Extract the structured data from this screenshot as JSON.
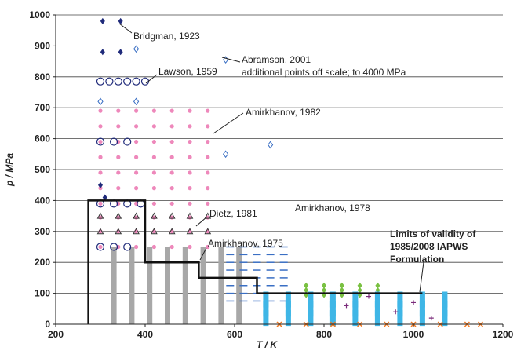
{
  "chart_data": {
    "type": "scatter",
    "xlabel": "T / K",
    "ylabel": "p / MPa",
    "xlim": [
      200,
      1200
    ],
    "ylim": [
      0,
      1000
    ],
    "xticks": [
      200,
      400,
      600,
      800,
      1000,
      1200
    ],
    "yticks": [
      0,
      100,
      200,
      300,
      400,
      500,
      600,
      700,
      800,
      900,
      1000
    ],
    "grid": true,
    "annotations": [
      "Bridgman, 1923",
      "Abramson, 2001",
      "additional points off scale; to 4000 MPa",
      "Lawson, 1959",
      "Amirkhanov, 1982",
      "Dietz, 1981",
      "Amirkhanov, 1975",
      "Amirkhanov, 1978",
      "Limits of validity of",
      "1985/2008 IAPWS",
      "Formulation"
    ],
    "series": [
      {
        "color": "#ee88bb",
        "marker": "dot",
        "x": [
          300,
          340,
          380,
          420,
          460,
          500,
          540,
          300,
          340,
          380,
          420,
          460,
          500,
          540,
          300,
          340,
          380,
          420,
          460,
          500,
          540,
          300,
          340,
          380,
          420,
          460,
          500,
          540,
          300,
          340,
          380,
          420,
          460,
          500,
          540,
          300,
          340,
          380,
          420,
          460,
          500,
          540,
          300,
          340,
          380,
          420,
          460,
          500,
          540,
          300,
          340,
          380,
          420,
          460,
          500,
          540,
          300,
          340,
          380,
          420,
          460,
          500,
          540,
          300,
          340,
          380,
          420,
          460,
          500,
          540
        ],
        "values": [
          690,
          690,
          690,
          690,
          690,
          690,
          690,
          640,
          640,
          640,
          640,
          640,
          640,
          640,
          590,
          590,
          590,
          590,
          590,
          590,
          590,
          540,
          540,
          540,
          540,
          540,
          540,
          540,
          490,
          490,
          490,
          490,
          490,
          490,
          490,
          440,
          440,
          440,
          440,
          440,
          440,
          440,
          390,
          390,
          390,
          390,
          390,
          390,
          390,
          345,
          345,
          345,
          345,
          345,
          345,
          345,
          300,
          300,
          300,
          300,
          300,
          300,
          300,
          250,
          250,
          250,
          250,
          250,
          250,
          250
        ]
      },
      {
        "color": "#a8a8a8",
        "marker": "vbar",
        "x": [
          330,
          370,
          410,
          450,
          490,
          530,
          570,
          610,
          330,
          370,
          410,
          450,
          490,
          530,
          570,
          610,
          330,
          370,
          410,
          450,
          490,
          530,
          570,
          610,
          330,
          370,
          410,
          450,
          490,
          530,
          570,
          610,
          330,
          370,
          410,
          450,
          490,
          530,
          570,
          610
        ],
        "values": [
          25,
          25,
          25,
          25,
          25,
          25,
          25,
          25,
          75,
          75,
          75,
          75,
          75,
          75,
          75,
          75,
          125,
          125,
          125,
          125,
          125,
          125,
          125,
          125,
          175,
          175,
          175,
          175,
          175,
          175,
          175,
          175,
          225,
          225,
          225,
          225,
          225,
          225,
          225,
          225
        ]
      },
      {
        "color": "#3a6fc4",
        "marker": "dash",
        "x": [
          590,
          620,
          650,
          680,
          710,
          590,
          620,
          650,
          680,
          710,
          590,
          620,
          650,
          680,
          710,
          590,
          620,
          650,
          680,
          710,
          590,
          620,
          650,
          680,
          710,
          590,
          620,
          650,
          680,
          710,
          590,
          620,
          650,
          680,
          710,
          590,
          620,
          650,
          680,
          710
        ],
        "values": [
          250,
          250,
          250,
          250,
          250,
          225,
          225,
          225,
          225,
          225,
          200,
          200,
          200,
          200,
          200,
          175,
          175,
          175,
          175,
          175,
          150,
          150,
          150,
          150,
          150,
          125,
          125,
          125,
          125,
          125,
          100,
          100,
          100,
          100,
          100,
          75,
          75,
          75,
          75,
          75
        ]
      },
      {
        "color": "#333333",
        "marker": "triangle-open",
        "x": [
          300,
          340,
          380,
          420,
          460,
          500,
          540,
          300,
          340,
          380,
          420,
          460,
          500,
          540
        ],
        "values": [
          350,
          350,
          350,
          350,
          350,
          350,
          350,
          300,
          300,
          300,
          300,
          300,
          300,
          300
        ]
      },
      {
        "color": "#1f2a7a",
        "marker": "circle-open",
        "x": [
          300,
          320,
          340,
          360,
          380,
          400,
          300,
          330,
          360,
          300,
          330,
          360,
          390,
          300,
          330,
          360
        ],
        "values": [
          785,
          785,
          785,
          785,
          785,
          785,
          590,
          590,
          590,
          390,
          390,
          390,
          390,
          250,
          250,
          250
        ]
      },
      {
        "color": "#1f2a7a",
        "marker": "diamond",
        "x": [
          305,
          345,
          305,
          345,
          300,
          310
        ],
        "values": [
          980,
          980,
          880,
          880,
          450,
          410
        ]
      },
      {
        "color": "#3a6fc4",
        "marker": "diamond-open",
        "x": [
          300,
          380,
          380,
          580,
          580,
          680
        ],
        "values": [
          720,
          890,
          720,
          855,
          550,
          580
        ]
      },
      {
        "color": "#7ac142",
        "marker": "diamond",
        "x": [
          760,
          800,
          840,
          880,
          920,
          760,
          800,
          840,
          880,
          920,
          760,
          800,
          840,
          880,
          920
        ],
        "values": [
          125,
          125,
          125,
          125,
          125,
          110,
          110,
          110,
          110,
          110,
          95,
          95,
          95,
          95,
          95
        ]
      },
      {
        "color": "#3fb6e6",
        "marker": "vbar",
        "x": [
          670,
          720,
          770,
          820,
          870,
          920,
          970,
          1020,
          1070,
          670,
          720,
          770,
          820,
          870,
          920,
          970,
          1020,
          1070,
          670,
          720,
          770,
          820,
          870,
          920,
          970,
          1020,
          1070
        ],
        "values": [
          20,
          20,
          20,
          20,
          20,
          20,
          20,
          20,
          20,
          50,
          50,
          50,
          50,
          50,
          50,
          50,
          50,
          50,
          80,
          80,
          80,
          80,
          80,
          80,
          80,
          80,
          80
        ]
      },
      {
        "color": "#7a2a7a",
        "marker": "plus",
        "x": [
          850,
          900,
          960,
          1000,
          1040
        ],
        "values": [
          60,
          90,
          40,
          70,
          20
        ]
      },
      {
        "color": "#f47a20",
        "marker": "cross",
        "x": [
          700,
          760,
          820,
          880,
          940,
          1000,
          1060,
          1120,
          1150
        ],
        "values": [
          0,
          0,
          0,
          0,
          0,
          0,
          0,
          0,
          0
        ]
      }
    ],
    "lines": [
      {
        "color": "#111111",
        "x": [
          273,
          273,
          400,
          400,
          520,
          520,
          650,
          650,
          1020
        ],
        "values": [
          0,
          400,
          400,
          200,
          200,
          150,
          150,
          100,
          100
        ]
      }
    ]
  }
}
